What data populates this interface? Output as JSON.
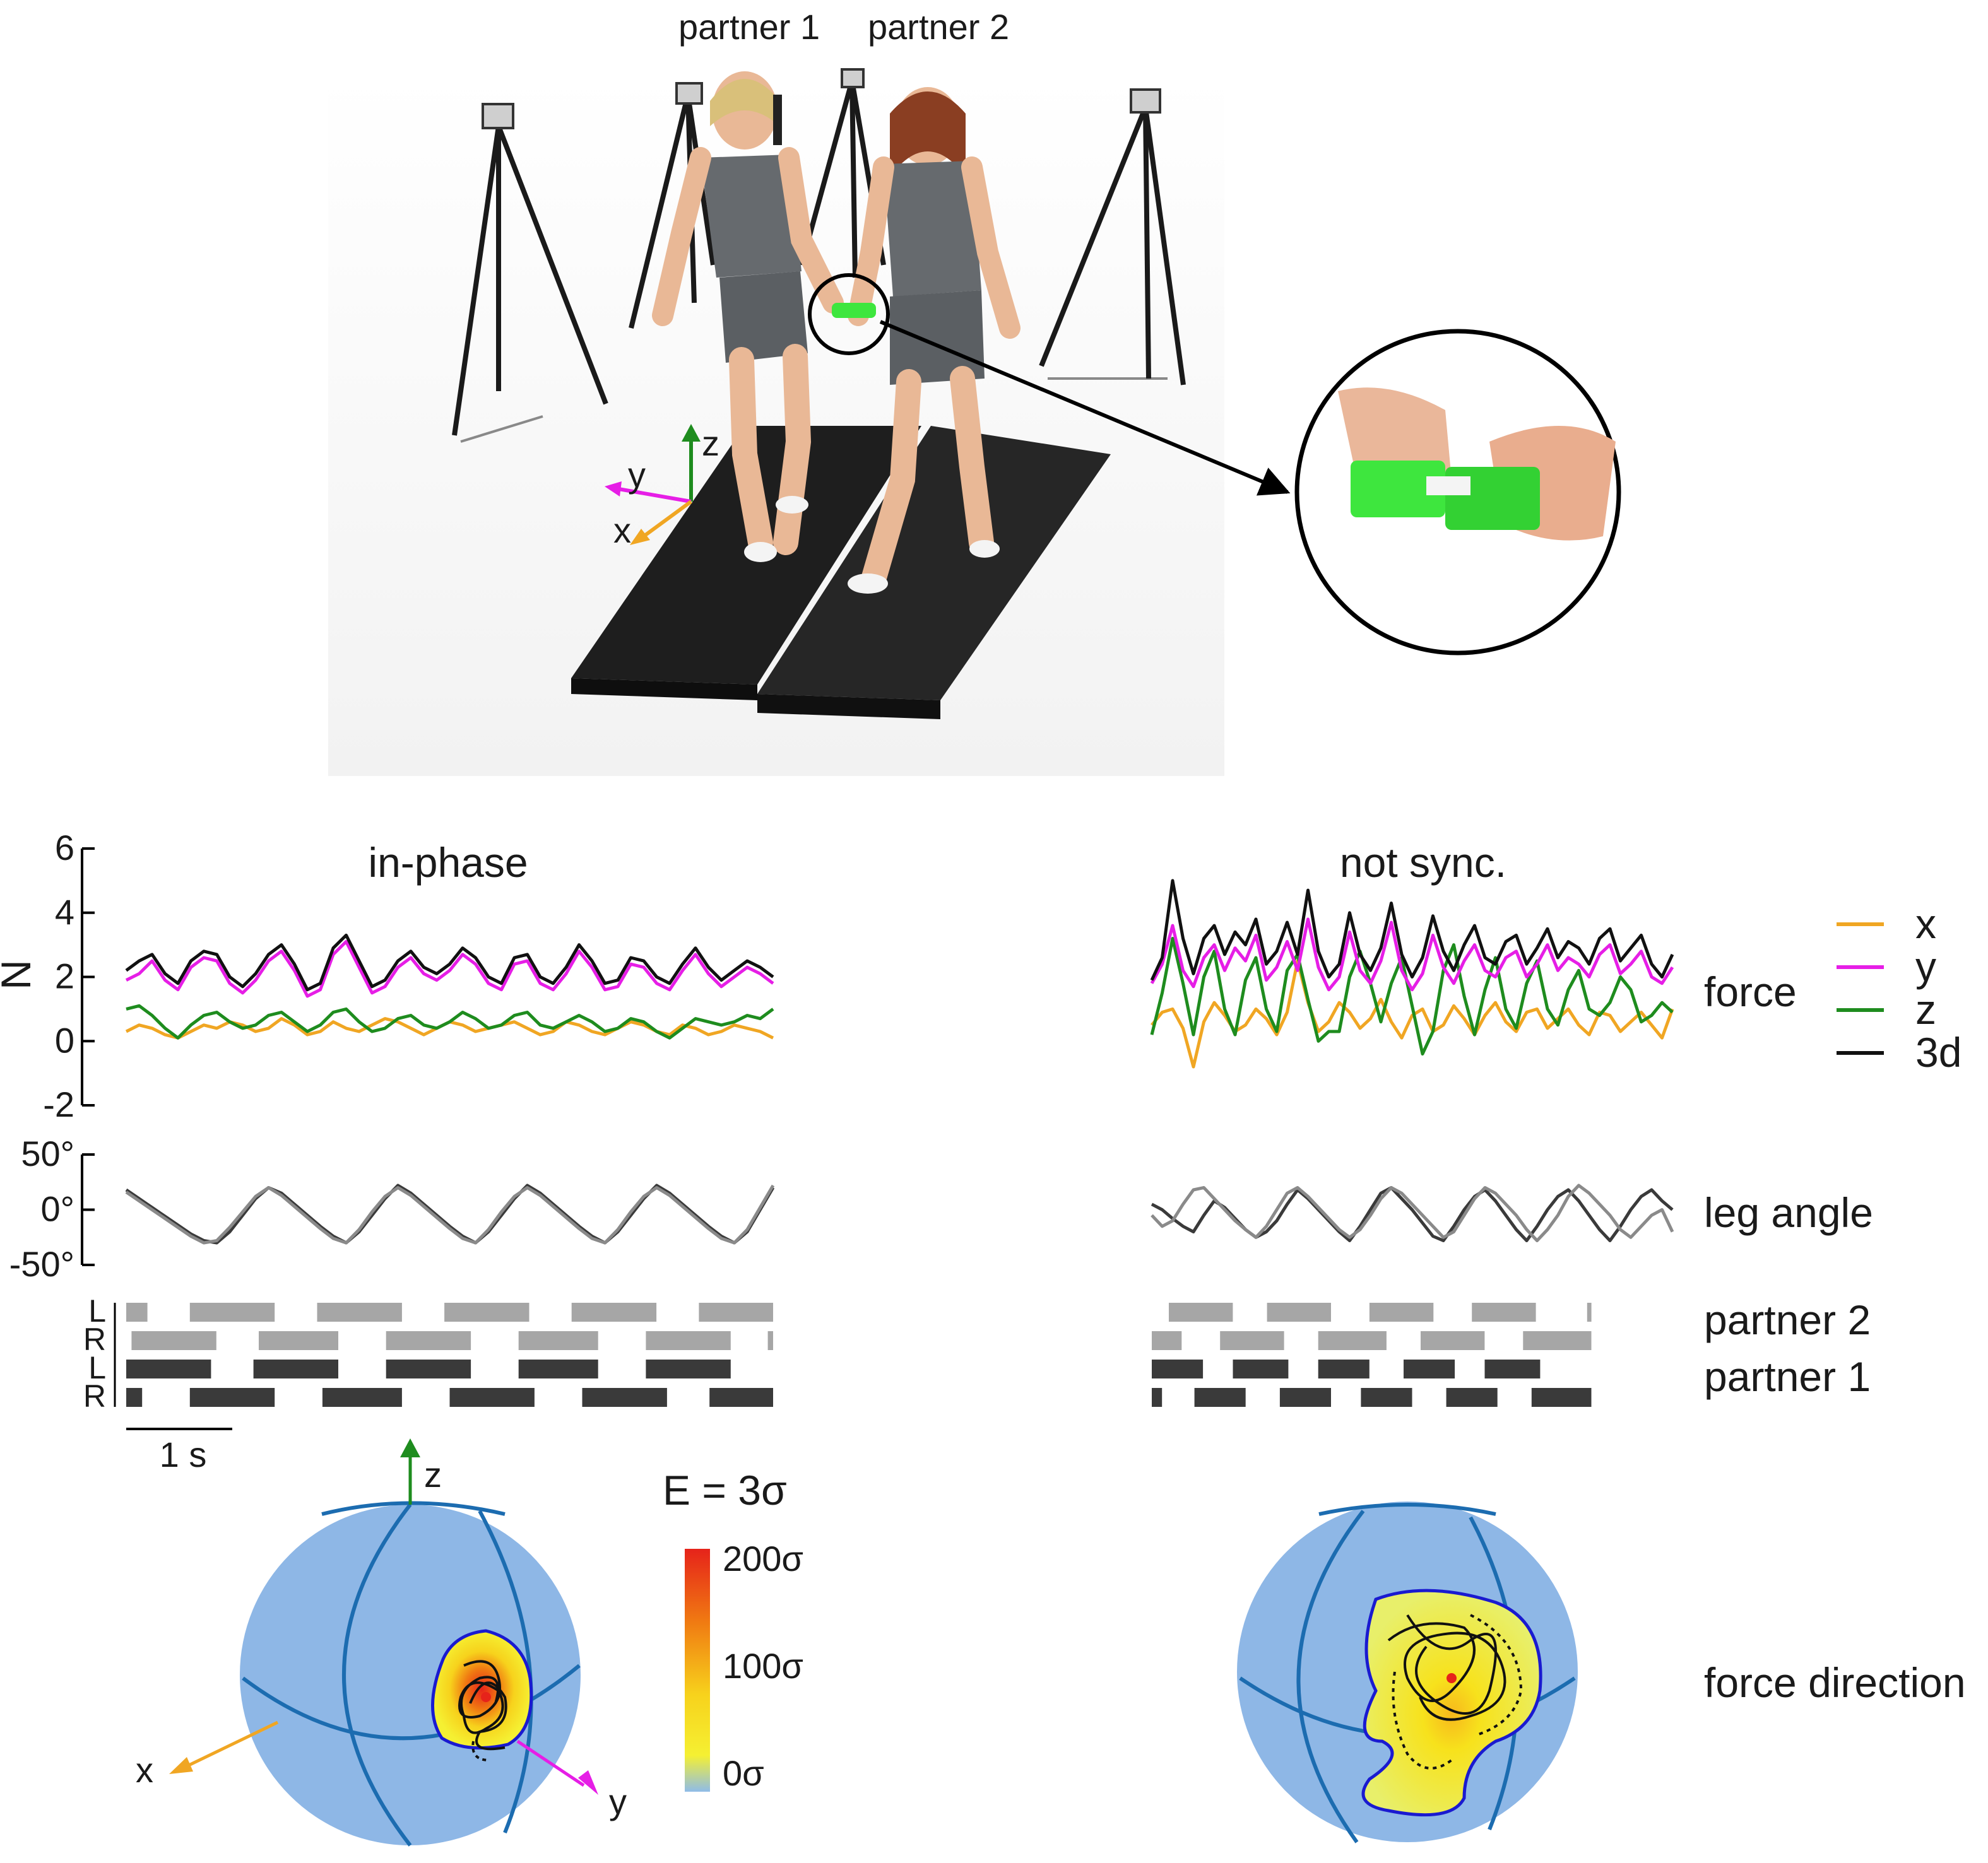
{
  "scene": {
    "partner_labels": [
      "partner 1",
      "partner 2"
    ],
    "axis_labels": {
      "x": "x",
      "y": "y",
      "z": "z"
    },
    "colors": {
      "x": "#f0a623",
      "y": "#e61ee6",
      "z": "#1e8c1e",
      "d3": "#111111",
      "treadmill": "#1c1c1c",
      "handle": "#3ee63e",
      "skin": "#e9b896",
      "shirt": "#666a6e"
    }
  },
  "conditions": [
    {
      "title": "in-phase",
      "chart_data": {
        "type": "line",
        "ylabel": "N",
        "ylim": [
          -2,
          6
        ],
        "yticks": [
          6,
          4,
          2,
          0,
          -2
        ],
        "x_duration_s": 6.1,
        "series": [
          {
            "name": "x",
            "key": "x",
            "values": [
              0.3,
              0.5,
              0.4,
              0.2,
              0.1,
              0.3,
              0.5,
              0.4,
              0.6,
              0.5,
              0.3,
              0.4,
              0.7,
              0.5,
              0.2,
              0.3,
              0.6,
              0.4,
              0.3,
              0.5,
              0.7,
              0.6,
              0.4,
              0.2,
              0.4,
              0.6,
              0.5,
              0.3,
              0.4,
              0.5,
              0.6,
              0.4,
              0.2,
              0.3,
              0.6,
              0.5,
              0.3,
              0.2,
              0.4,
              0.6,
              0.5,
              0.3,
              0.2,
              0.5,
              0.4,
              0.2,
              0.3,
              0.5,
              0.4,
              0.3,
              0.1
            ]
          },
          {
            "name": "y",
            "key": "y",
            "values": [
              1.9,
              2.1,
              2.5,
              1.9,
              1.6,
              2.3,
              2.6,
              2.5,
              1.8,
              1.5,
              1.9,
              2.5,
              2.8,
              2.2,
              1.4,
              1.6,
              2.7,
              3.1,
              2.3,
              1.5,
              1.7,
              2.3,
              2.6,
              2.1,
              1.9,
              2.2,
              2.7,
              2.4,
              1.8,
              1.6,
              2.4,
              2.5,
              1.8,
              1.6,
              2.1,
              2.8,
              2.3,
              1.6,
              1.7,
              2.4,
              2.3,
              1.8,
              1.6,
              2.2,
              2.7,
              2.1,
              1.7,
              2.0,
              2.3,
              2.1,
              1.8
            ]
          },
          {
            "name": "z",
            "key": "z",
            "values": [
              1.0,
              1.1,
              0.8,
              0.4,
              0.1,
              0.5,
              0.8,
              0.9,
              0.6,
              0.4,
              0.5,
              0.8,
              0.9,
              0.6,
              0.3,
              0.5,
              0.9,
              1.0,
              0.6,
              0.3,
              0.4,
              0.7,
              0.8,
              0.5,
              0.4,
              0.6,
              0.9,
              0.7,
              0.4,
              0.5,
              0.8,
              0.9,
              0.5,
              0.4,
              0.6,
              0.8,
              0.6,
              0.3,
              0.4,
              0.7,
              0.6,
              0.3,
              0.1,
              0.4,
              0.7,
              0.6,
              0.5,
              0.6,
              0.8,
              0.7,
              1.0
            ]
          },
          {
            "name": "3d",
            "key": "d3",
            "values": [
              2.2,
              2.5,
              2.7,
              2.1,
              1.8,
              2.5,
              2.8,
              2.7,
              2.0,
              1.7,
              2.1,
              2.7,
              3.0,
              2.4,
              1.6,
              1.8,
              2.9,
              3.3,
              2.5,
              1.7,
              1.9,
              2.5,
              2.8,
              2.3,
              2.1,
              2.4,
              2.9,
              2.6,
              2.0,
              1.8,
              2.6,
              2.7,
              2.0,
              1.8,
              2.3,
              3.0,
              2.5,
              1.8,
              1.9,
              2.6,
              2.5,
              2.0,
              1.8,
              2.4,
              2.9,
              2.3,
              1.9,
              2.2,
              2.5,
              2.3,
              2.0
            ]
          }
        ]
      },
      "leg_angle": {
        "ylim": [
          -50,
          50
        ],
        "yticks": [
          "50°",
          "0°",
          "-50°"
        ],
        "partner1_deg": [
          18,
          10,
          2,
          -6,
          -14,
          -22,
          -28,
          -30,
          -20,
          -5,
          10,
          20,
          15,
          5,
          -5,
          -15,
          -24,
          -30,
          -20,
          -5,
          10,
          22,
          15,
          5,
          -5,
          -15,
          -24,
          -30,
          -20,
          -5,
          10,
          22,
          15,
          5,
          -5,
          -15,
          -24,
          -30,
          -20,
          -5,
          10,
          22,
          15,
          5,
          -5,
          -15,
          -24,
          -30,
          -20,
          0,
          20
        ],
        "partner2_deg": [
          16,
          8,
          0,
          -8,
          -16,
          -24,
          -30,
          -28,
          -16,
          -2,
          12,
          20,
          13,
          3,
          -7,
          -17,
          -26,
          -30,
          -18,
          -2,
          12,
          20,
          13,
          3,
          -7,
          -17,
          -26,
          -30,
          -18,
          -2,
          12,
          20,
          13,
          3,
          -7,
          -17,
          -26,
          -30,
          -18,
          -2,
          12,
          20,
          13,
          3,
          -7,
          -17,
          -26,
          -30,
          -18,
          2,
          22
        ]
      },
      "gait": {
        "row_labels": [
          "L",
          "R",
          "L",
          "R"
        ],
        "partner2_L": [
          [
            0.0,
            0.2
          ],
          [
            0.6,
            1.4
          ],
          [
            1.8,
            2.6
          ],
          [
            3.0,
            3.8
          ],
          [
            4.2,
            5.0
          ],
          [
            5.4,
            6.1
          ]
        ],
        "partner2_R": [
          [
            0.05,
            0.85
          ],
          [
            1.25,
            2.0
          ],
          [
            2.45,
            3.25
          ],
          [
            3.7,
            4.45
          ],
          [
            4.9,
            5.7
          ],
          [
            6.05,
            6.1
          ]
        ],
        "partner1_L": [
          [
            0.0,
            0.8
          ],
          [
            1.2,
            2.0
          ],
          [
            2.45,
            3.25
          ],
          [
            3.7,
            4.45
          ],
          [
            4.9,
            5.7
          ]
        ],
        "partner1_R": [
          [
            0.0,
            0.15
          ],
          [
            0.6,
            1.4
          ],
          [
            1.85,
            2.6
          ],
          [
            3.05,
            3.85
          ],
          [
            4.3,
            5.1
          ],
          [
            5.5,
            6.1
          ]
        ]
      },
      "sphere": {
        "contour": "compact",
        "trajectory": "tight"
      }
    },
    {
      "title": "not sync.",
      "chart_data": {
        "type": "line",
        "x_duration_s": 6.1,
        "series": [
          {
            "key": "x",
            "values": [
              0.5,
              0.9,
              1.0,
              0.4,
              -0.8,
              0.6,
              1.2,
              0.8,
              0.3,
              0.5,
              1.0,
              0.7,
              0.2,
              0.9,
              2.5,
              1.2,
              0.3,
              0.6,
              1.2,
              0.9,
              0.4,
              0.7,
              1.3,
              0.6,
              0.1,
              0.8,
              1.0,
              0.3,
              0.5,
              1.1,
              0.7,
              0.2,
              0.8,
              1.2,
              0.6,
              0.3,
              0.9,
              1.0,
              0.4,
              0.7,
              1.0,
              0.5,
              0.2,
              0.9,
              0.8,
              0.3,
              0.6,
              0.9,
              0.5,
              0.1,
              1.0
            ]
          },
          {
            "key": "y",
            "values": [
              1.8,
              2.4,
              3.6,
              2.2,
              1.7,
              2.6,
              3.0,
              2.2,
              2.9,
              2.5,
              3.3,
              1.9,
              2.3,
              3.1,
              2.2,
              3.8,
              2.3,
              1.6,
              2.0,
              3.4,
              2.2,
              1.8,
              2.5,
              3.7,
              2.2,
              1.6,
              2.1,
              3.3,
              2.3,
              1.8,
              2.5,
              3.0,
              2.2,
              2.0,
              2.6,
              2.8,
              2.0,
              2.4,
              3.0,
              2.2,
              2.6,
              2.4,
              2.0,
              2.7,
              3.0,
              2.1,
              2.4,
              2.8,
              2.0,
              1.8,
              2.3
            ]
          },
          {
            "key": "z",
            "values": [
              0.2,
              1.5,
              3.2,
              1.8,
              0.2,
              2.0,
              2.8,
              1.0,
              0.2,
              1.9,
              2.6,
              1.0,
              0.3,
              2.2,
              2.7,
              1.3,
              0.0,
              0.3,
              0.3,
              2.0,
              2.8,
              1.8,
              0.6,
              1.8,
              2.6,
              1.1,
              -0.4,
              0.3,
              2.2,
              3.0,
              1.4,
              0.2,
              1.6,
              2.6,
              1.0,
              0.4,
              1.8,
              2.5,
              1.0,
              0.5,
              1.6,
              2.2,
              1.0,
              0.8,
              1.2,
              2.0,
              1.6,
              0.6,
              0.8,
              1.2,
              0.9
            ]
          },
          {
            "key": "d3",
            "values": [
              1.9,
              2.6,
              5.0,
              3.2,
              2.1,
              3.2,
              3.6,
              2.7,
              3.4,
              3.0,
              3.8,
              2.4,
              2.8,
              3.7,
              2.7,
              4.7,
              2.8,
              2.0,
              2.4,
              4.0,
              2.7,
              2.2,
              2.9,
              4.3,
              2.7,
              2.0,
              2.6,
              3.9,
              2.8,
              2.2,
              3.0,
              3.6,
              2.6,
              2.4,
              3.1,
              3.3,
              2.4,
              2.9,
              3.5,
              2.6,
              3.1,
              2.9,
              2.4,
              3.2,
              3.5,
              2.5,
              2.9,
              3.3,
              2.4,
              2.0,
              2.7
            ]
          }
        ]
      },
      "leg_angle": {
        "partner1_deg": [
          5,
          0,
          -8,
          -15,
          -20,
          -5,
          8,
          2,
          -8,
          -18,
          -25,
          -20,
          -10,
          5,
          18,
          10,
          0,
          -10,
          -20,
          -28,
          -15,
          0,
          15,
          20,
          10,
          0,
          -12,
          -24,
          -28,
          -15,
          0,
          12,
          18,
          8,
          -5,
          -18,
          -28,
          -15,
          0,
          12,
          18,
          8,
          -5,
          -18,
          -28,
          -15,
          0,
          12,
          18,
          8,
          0
        ],
        "partner2_deg": [
          -5,
          -15,
          -10,
          5,
          18,
          20,
          10,
          0,
          -10,
          -18,
          -25,
          -15,
          0,
          15,
          20,
          12,
          2,
          -8,
          -18,
          -25,
          -18,
          -5,
          10,
          20,
          15,
          5,
          -5,
          -15,
          -25,
          -20,
          -5,
          10,
          20,
          15,
          5,
          -5,
          -18,
          -28,
          -18,
          -5,
          12,
          22,
          15,
          5,
          -5,
          -18,
          -25,
          -15,
          -5,
          0,
          -20
        ]
      },
      "gait": {
        "row_labels": [
          "",
          "",
          "",
          ""
        ],
        "partner2_L": [
          [
            0.2,
            0.95
          ],
          [
            1.35,
            2.1
          ],
          [
            2.55,
            3.3
          ],
          [
            3.75,
            4.5
          ],
          [
            5.1,
            5.15
          ]
        ],
        "partner2_R": [
          [
            0.0,
            0.35
          ],
          [
            0.8,
            1.55
          ],
          [
            1.95,
            2.75
          ],
          [
            3.15,
            3.9
          ],
          [
            4.35,
            5.15
          ]
        ],
        "partner1_L": [
          [
            0.0,
            0.6
          ],
          [
            0.95,
            1.6
          ],
          [
            1.95,
            2.55
          ],
          [
            2.95,
            3.55
          ],
          [
            3.9,
            4.55
          ]
        ],
        "partner1_R": [
          [
            0.0,
            0.12
          ],
          [
            0.5,
            1.1
          ],
          [
            1.5,
            2.1
          ],
          [
            2.45,
            3.05
          ],
          [
            3.45,
            4.05
          ],
          [
            4.45,
            5.15
          ]
        ]
      },
      "sphere": {
        "contour": "wide",
        "trajectory": "spread"
      }
    }
  ],
  "legend": [
    {
      "label": "x",
      "key": "x"
    },
    {
      "label": "y",
      "key": "y"
    },
    {
      "label": "z",
      "key": "z"
    },
    {
      "label": "3d",
      "key": "d3"
    }
  ],
  "row_labels": {
    "force": "force",
    "leg_angle": "leg angle",
    "partner2": "partner 2",
    "partner1": "partner 1",
    "force_direction": "force direction"
  },
  "scalebar": {
    "label": "1 s",
    "duration_s": 1
  },
  "colorbar": {
    "title": "E = 3σ",
    "ticks": [
      "200σ",
      "100σ",
      "0σ"
    ],
    "colors": [
      "#e6231a",
      "#f07a12",
      "#f7d21c",
      "#f5f032",
      "#8fbce8"
    ]
  },
  "sphere_colors": {
    "fill": "#8eb7e6",
    "grid": "#1c6cb0",
    "contour": "#1a1ad0"
  }
}
